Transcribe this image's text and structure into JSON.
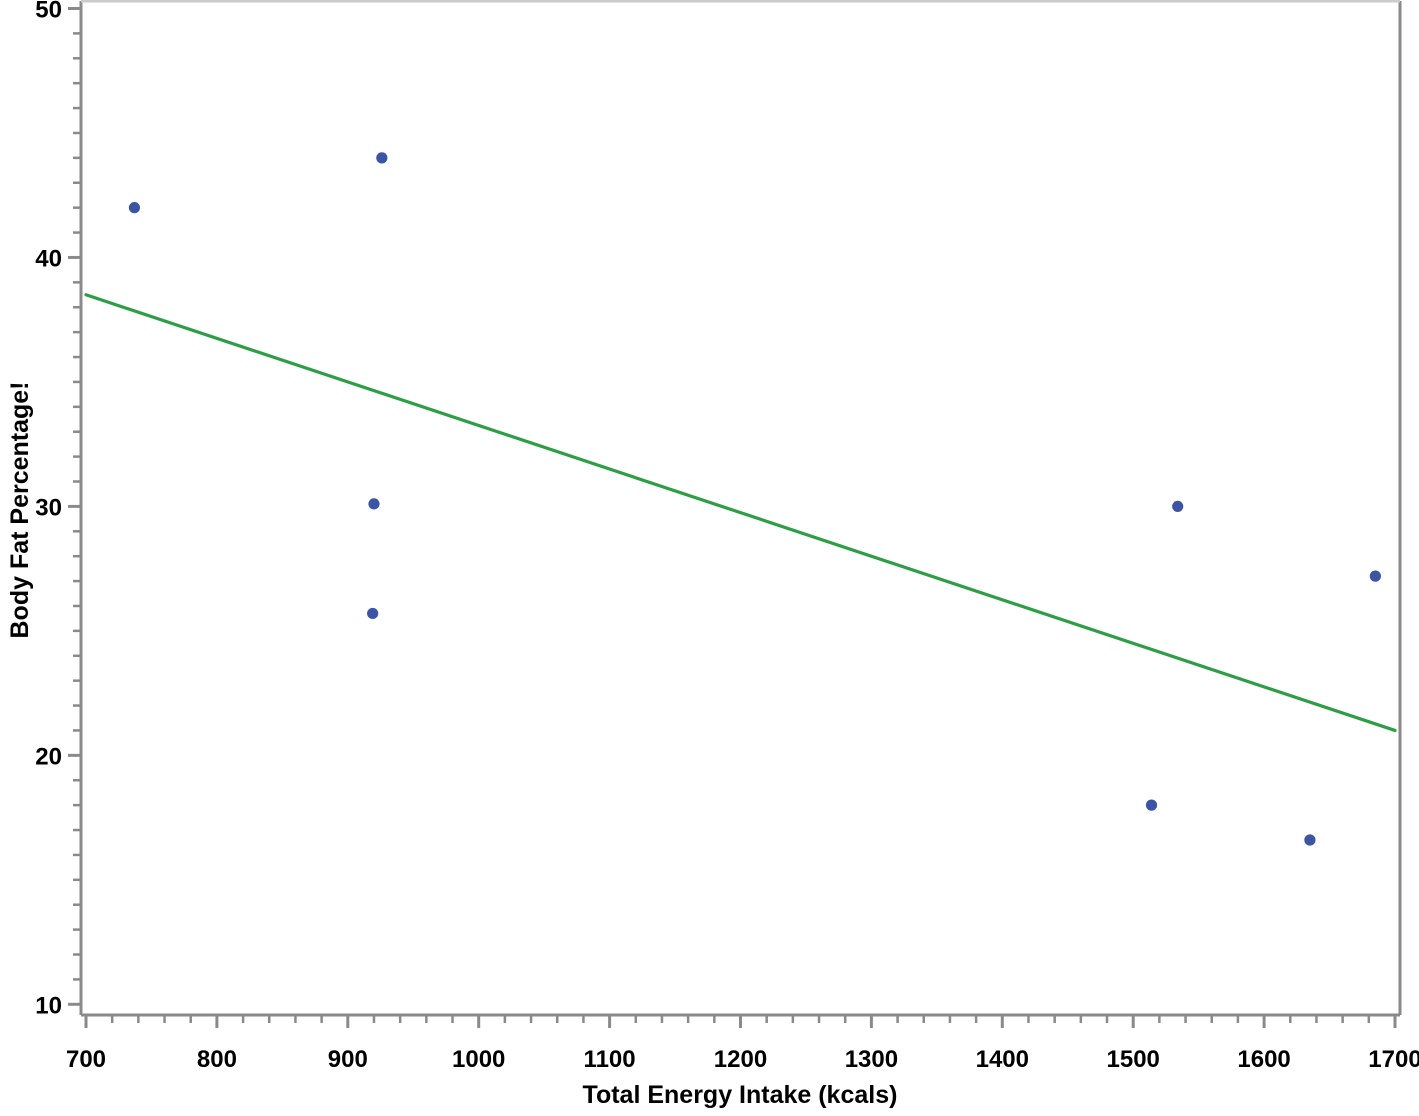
{
  "chart_data": {
    "type": "scatter",
    "title": "",
    "xlabel": "Total Energy Intake (kcals)",
    "ylabel": "Body Fat Percentage!",
    "xlim": [
      700,
      1700
    ],
    "ylim": [
      10,
      50
    ],
    "x_major_ticks": [
      700,
      800,
      900,
      1000,
      1100,
      1200,
      1300,
      1400,
      1500,
      1600,
      1700
    ],
    "x_minor_step": 20,
    "y_major_ticks": [
      10,
      20,
      30,
      40,
      50
    ],
    "y_minor_step": 1,
    "grid": false,
    "legend": false,
    "points": [
      {
        "x": 737,
        "y": 42.0
      },
      {
        "x": 926,
        "y": 44.0
      },
      {
        "x": 920,
        "y": 30.1
      },
      {
        "x": 919,
        "y": 25.7
      },
      {
        "x": 1534,
        "y": 30.0
      },
      {
        "x": 1685,
        "y": 27.2
      },
      {
        "x": 1514,
        "y": 18.0
      },
      {
        "x": 1635,
        "y": 16.6
      }
    ],
    "regression_line": {
      "x_start": 700,
      "y_start": 38.5,
      "x_end": 1700,
      "y_end": 21.0
    },
    "colors": {
      "point": "#3B54A4",
      "line": "#2E9E46",
      "axis": "#8A8A8A",
      "frame_top": "#CBCBCB",
      "tick_label": "#000000"
    },
    "marker_radius": 5.6
  }
}
